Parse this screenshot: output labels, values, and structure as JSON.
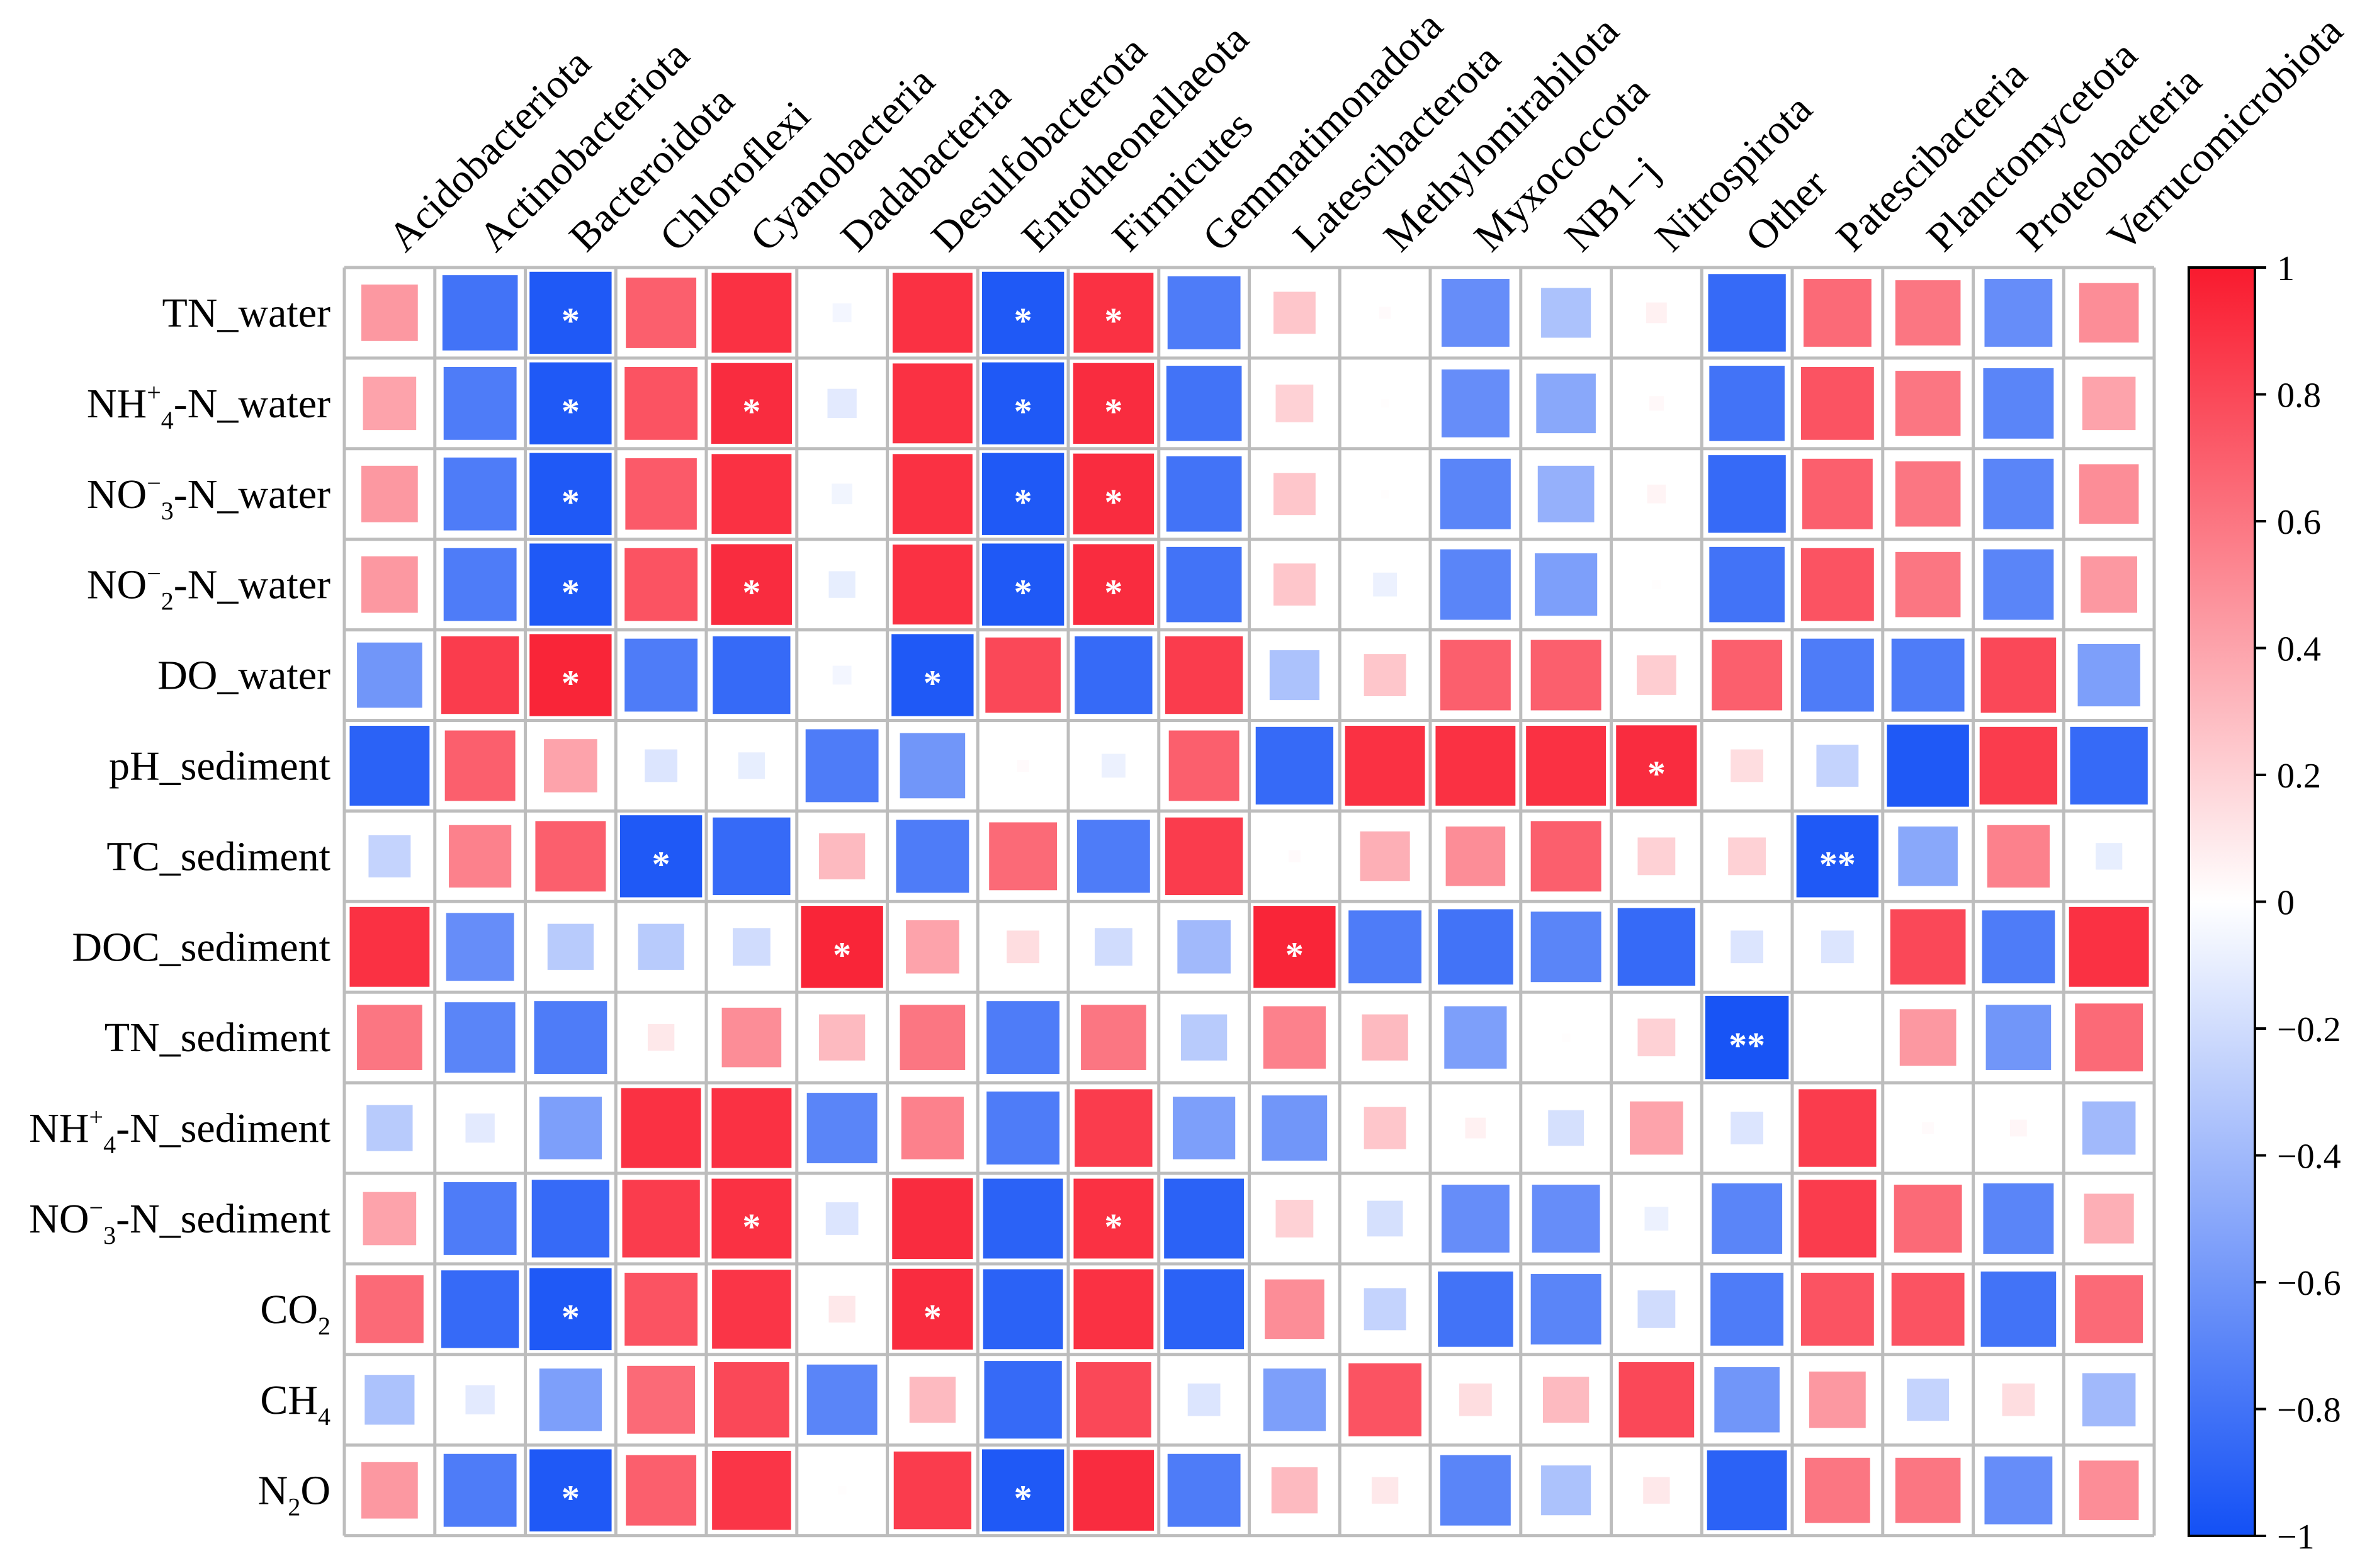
{
  "chart_data": {
    "type": "heatmap",
    "title": "",
    "columns": [
      "Acidobacteriota",
      "Actinobacteriota",
      "Bacteroidota",
      "Chloroflexi",
      "Cyanobacteria",
      "Dadabacteria",
      "Desulfobacterota",
      "Entotheonellaeota",
      "Firmicutes",
      "Gemmatimonadota",
      "Latescibacterota",
      "Methylomirabilota",
      "Myxococcota",
      "NB1−j",
      "Nitrospirota",
      "Other",
      "Patescibacteria",
      "Planctomycetota",
      "Proteobacteria",
      "Verrucomicrobiota"
    ],
    "rows": [
      {
        "label": "TN_water",
        "prefix": "TN_water",
        "sub": "",
        "sup": "",
        "suffix": ""
      },
      {
        "label": "NH4+-N_water",
        "prefix": "NH",
        "sub": "4",
        "sup": "+",
        "suffix": "-N_water"
      },
      {
        "label": "NO3−-N_water",
        "prefix": "NO",
        "sub": "3",
        "sup": "−",
        "suffix": "-N_water"
      },
      {
        "label": "NO2−-N_water",
        "prefix": "NO",
        "sub": "2",
        "sup": "−",
        "suffix": "-N_water"
      },
      {
        "label": "DO_water",
        "prefix": "DO_water",
        "sub": "",
        "sup": "",
        "suffix": ""
      },
      {
        "label": "pH_sediment",
        "prefix": "pH_sediment",
        "sub": "",
        "sup": "",
        "suffix": ""
      },
      {
        "label": "TC_sediment",
        "prefix": "TC_sediment",
        "sub": "",
        "sup": "",
        "suffix": ""
      },
      {
        "label": "DOC_sediment",
        "prefix": "DOC_sediment",
        "sub": "",
        "sup": "",
        "suffix": ""
      },
      {
        "label": "TN_sediment",
        "prefix": "TN_sediment",
        "sub": "",
        "sup": "",
        "suffix": ""
      },
      {
        "label": "NH4+-N_sediment",
        "prefix": "NH",
        "sub": "4",
        "sup": "+",
        "suffix": "-N_sediment"
      },
      {
        "label": "NO3−-N_sediment",
        "prefix": "NO",
        "sub": "3",
        "sup": "−",
        "suffix": "-N_sediment"
      },
      {
        "label": "CO2",
        "prefix": "CO",
        "sub": "2",
        "sup": "",
        "suffix": ""
      },
      {
        "label": "CH4",
        "prefix": "CH",
        "sub": "4",
        "sup": "",
        "suffix": ""
      },
      {
        "label": "N2O",
        "prefix": "N",
        "sub": "2",
        "sup": "",
        "suffix": "O"
      }
    ],
    "values": [
      [
        0.45,
        -0.8,
        -0.95,
        0.7,
        0.9,
        -0.05,
        0.9,
        -0.95,
        0.9,
        -0.75,
        0.25,
        0.02,
        -0.65,
        -0.35,
        0.06,
        -0.85,
        0.65,
        0.6,
        -0.65,
        0.5
      ],
      [
        0.4,
        -0.75,
        -0.95,
        0.75,
        0.92,
        -0.12,
        0.9,
        -0.95,
        0.92,
        -0.8,
        0.2,
        0.01,
        -0.65,
        -0.5,
        0.03,
        -0.8,
        0.75,
        0.6,
        -0.7,
        0.4
      ],
      [
        0.45,
        -0.75,
        -0.95,
        0.72,
        0.9,
        -0.06,
        0.9,
        -0.95,
        0.92,
        -0.8,
        0.25,
        0.01,
        -0.7,
        -0.45,
        0.05,
        -0.85,
        0.7,
        0.6,
        -0.7,
        0.5
      ],
      [
        0.45,
        -0.75,
        -0.95,
        0.75,
        0.92,
        -0.1,
        0.9,
        -0.95,
        0.92,
        -0.8,
        0.25,
        -0.08,
        -0.7,
        -0.55,
        0.01,
        -0.8,
        0.75,
        0.6,
        -0.7,
        0.45
      ],
      [
        -0.6,
        0.85,
        0.95,
        -0.75,
        -0.85,
        -0.05,
        -0.95,
        0.8,
        -0.85,
        0.85,
        -0.35,
        0.25,
        0.7,
        0.7,
        0.22,
        0.7,
        -0.75,
        -0.75,
        0.8,
        -0.55
      ],
      [
        -0.9,
        0.7,
        0.4,
        -0.15,
        -0.1,
        -0.75,
        -0.6,
        0.02,
        -0.08,
        0.7,
        -0.85,
        0.9,
        0.9,
        0.9,
        0.92,
        0.15,
        -0.25,
        -0.95,
        0.85,
        -0.85
      ],
      [
        -0.25,
        0.55,
        0.7,
        -0.95,
        -0.85,
        0.3,
        -0.75,
        0.65,
        -0.75,
        0.85,
        0.02,
        0.35,
        0.5,
        0.7,
        0.2,
        0.2,
        -0.95,
        -0.5,
        0.55,
        -0.1
      ],
      [
        0.9,
        -0.65,
        -0.3,
        -0.3,
        -0.2,
        0.95,
        0.4,
        0.15,
        -0.2,
        -0.4,
        0.95,
        -0.75,
        -0.8,
        -0.7,
        -0.85,
        -0.15,
        -0.15,
        0.8,
        -0.75,
        0.9
      ],
      [
        0.6,
        -0.7,
        -0.75,
        0.1,
        0.5,
        0.3,
        0.6,
        -0.75,
        0.6,
        -0.3,
        0.55,
        0.3,
        -0.55,
        0.01,
        0.2,
        -0.98,
        0.0,
        0.45,
        -0.6,
        0.65
      ],
      [
        -0.3,
        -0.12,
        -0.55,
        0.9,
        0.9,
        -0.7,
        0.55,
        -0.75,
        0.85,
        -0.55,
        -0.6,
        0.25,
        0.06,
        -0.18,
        0.4,
        -0.15,
        0.85,
        0.02,
        0.04,
        -0.4
      ],
      [
        0.4,
        -0.75,
        -0.85,
        0.85,
        0.9,
        -0.15,
        0.92,
        -0.9,
        0.9,
        -0.9,
        0.2,
        -0.18,
        -0.65,
        -0.65,
        -0.08,
        -0.7,
        0.85,
        0.65,
        -0.7,
        0.35
      ],
      [
        0.65,
        -0.85,
        -0.95,
        0.75,
        0.88,
        0.1,
        0.92,
        -0.9,
        0.9,
        -0.9,
        0.5,
        -0.25,
        -0.8,
        -0.7,
        -0.2,
        -0.75,
        0.75,
        0.75,
        -0.8,
        0.65
      ],
      [
        -0.35,
        -0.12,
        -0.55,
        0.65,
        0.8,
        -0.7,
        0.3,
        -0.85,
        0.8,
        -0.15,
        -0.55,
        0.75,
        0.15,
        0.3,
        0.8,
        -0.6,
        0.45,
        -0.25,
        0.15,
        -0.4
      ],
      [
        0.45,
        -0.75,
        -0.95,
        0.7,
        0.88,
        0.01,
        0.85,
        -0.95,
        0.92,
        -0.75,
        0.3,
        0.1,
        -0.7,
        -0.35,
        0.1,
        -0.9,
        0.6,
        0.6,
        -0.65,
        0.5
      ]
    ],
    "significance": [
      [
        "",
        "",
        "*",
        "",
        "",
        "",
        "",
        "*",
        "*",
        "",
        "",
        "",
        "",
        "",
        "",
        "",
        "",
        "",
        "",
        ""
      ],
      [
        "",
        "",
        "*",
        "",
        "*",
        "",
        "",
        "*",
        "*",
        "",
        "",
        "",
        "",
        "",
        "",
        "",
        "",
        "",
        "",
        ""
      ],
      [
        "",
        "",
        "*",
        "",
        "",
        "",
        "",
        "*",
        "*",
        "",
        "",
        "",
        "",
        "",
        "",
        "",
        "",
        "",
        "",
        ""
      ],
      [
        "",
        "",
        "*",
        "",
        "*",
        "",
        "",
        "*",
        "*",
        "",
        "",
        "",
        "",
        "",
        "",
        "",
        "",
        "",
        "",
        ""
      ],
      [
        "",
        "",
        "*",
        "",
        "",
        "",
        "*",
        "",
        "",
        "",
        "",
        "",
        "",
        "",
        "",
        "",
        "",
        "",
        "",
        ""
      ],
      [
        "",
        "",
        "",
        "",
        "",
        "",
        "",
        "",
        "",
        "",
        "",
        "",
        "",
        "",
        "*",
        "",
        "",
        "",
        "",
        ""
      ],
      [
        "",
        "",
        "",
        "*",
        "",
        "",
        "",
        "",
        "",
        "",
        "",
        "",
        "",
        "",
        "",
        "",
        "**",
        "",
        "",
        ""
      ],
      [
        "",
        "",
        "",
        "",
        "",
        "*",
        "",
        "",
        "",
        "",
        "*",
        "",
        "",
        "",
        "",
        "",
        "",
        "",
        "",
        ""
      ],
      [
        "",
        "",
        "",
        "",
        "",
        "",
        "",
        "",
        "",
        "",
        "",
        "",
        "",
        "",
        "",
        "**",
        "",
        "",
        "",
        ""
      ],
      [
        "",
        "",
        "",
        "",
        "",
        "",
        "",
        "",
        "",
        "",
        "",
        "",
        "",
        "",
        "",
        "",
        "",
        "",
        "",
        ""
      ],
      [
        "",
        "",
        "",
        "",
        "*",
        "",
        "",
        "",
        "*",
        "",
        "",
        "",
        "",
        "",
        "",
        "",
        "",
        "",
        "",
        ""
      ],
      [
        "",
        "",
        "*",
        "",
        "",
        "",
        "*",
        "",
        "",
        "",
        "",
        "",
        "",
        "",
        "",
        "",
        "",
        "",
        "",
        ""
      ],
      [
        "",
        "",
        "",
        "",
        "",
        "",
        "",
        "",
        "",
        "",
        "",
        "",
        "",
        "",
        "",
        "",
        "",
        "",
        "",
        ""
      ],
      [
        "",
        "",
        "*",
        "",
        "",
        "",
        "",
        "*",
        "",
        "",
        "",
        "",
        "",
        "",
        "",
        "",
        "",
        "",
        "",
        ""
      ]
    ],
    "colorbar": {
      "range": [
        -1,
        1
      ],
      "ticks": [
        1,
        0.8,
        0.6,
        0.4,
        0.2,
        0,
        -0.2,
        -0.4,
        -0.6,
        -0.8,
        -1
      ],
      "tick_labels": [
        "1",
        "0.8",
        "0.6",
        "0.4",
        "0.2",
        "0",
        "−0.2",
        "−0.4",
        "−0.6",
        "−0.8",
        "−1"
      ],
      "negative_color": "#1350f5",
      "zero_color": "#ffffff",
      "positive_color": "#f91a2e"
    },
    "grid_color": "#bdbdbd",
    "star_color": "#ffffff"
  }
}
